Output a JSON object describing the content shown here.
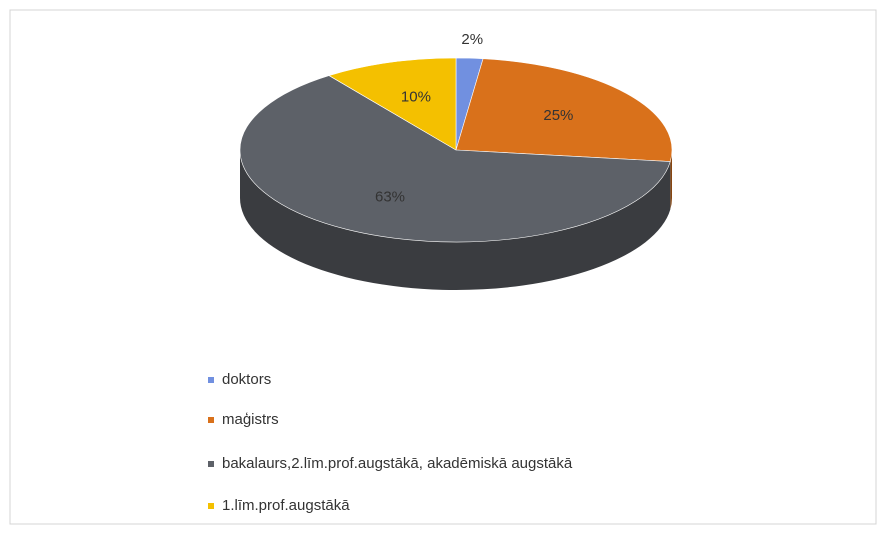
{
  "chart_data": {
    "type": "pie",
    "categories": [
      "doktors",
      "maģistrs",
      "bakalaurs,2.līm.prof.augstākā, akadēmiskā augstākā",
      "1.līm.prof.augstākā"
    ],
    "values": [
      2,
      25,
      63,
      10
    ],
    "value_labels": [
      "2%",
      "25%",
      "63%",
      "10%"
    ],
    "colors": [
      "#7190e0",
      "#d9711b",
      "#5d6168",
      "#f4c000"
    ],
    "legend": "bottom"
  }
}
